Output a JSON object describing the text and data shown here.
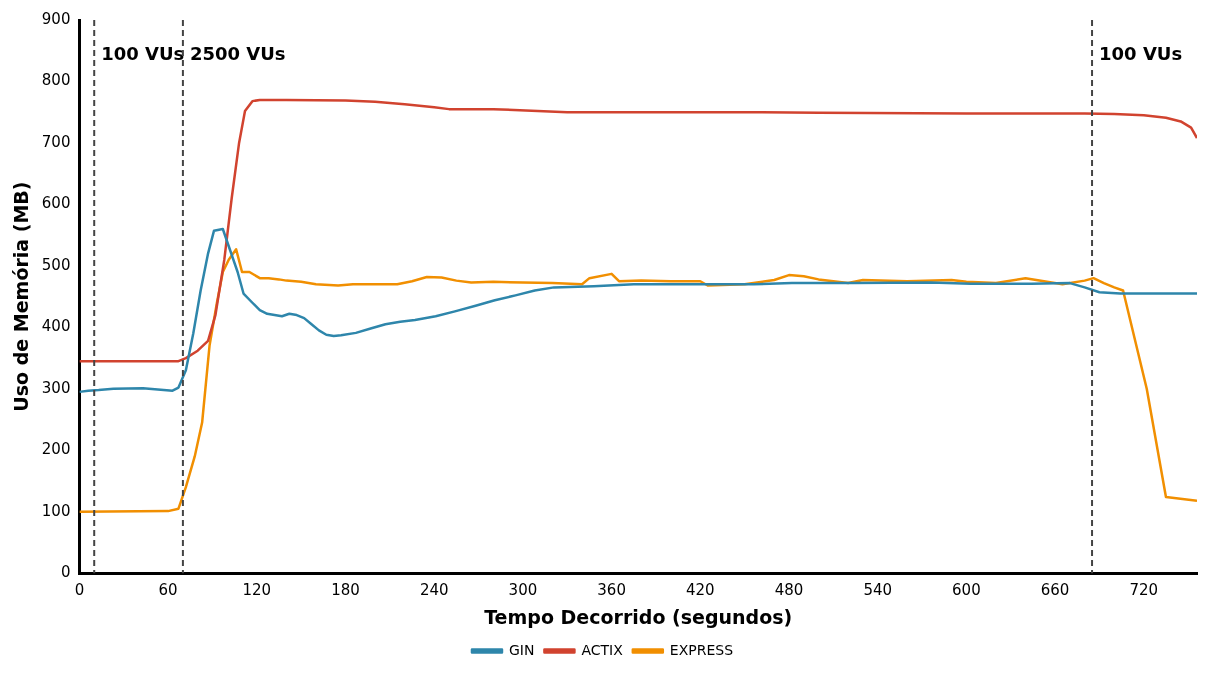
{
  "chart_data": {
    "type": "line",
    "xlabel": "Tempo Decorrido (segundos)",
    "ylabel": "Uso de Memória (MB)",
    "xlim": [
      0,
      756
    ],
    "xticks": [
      0,
      60,
      120,
      180,
      240,
      300,
      360,
      420,
      480,
      540,
      600,
      660,
      720
    ],
    "ylim": [
      0,
      900
    ],
    "yticks": [
      0,
      100,
      200,
      300,
      400,
      500,
      600,
      700,
      800,
      900
    ],
    "grid": false,
    "legend": "bottom",
    "marker": "none",
    "line_style": "solid",
    "ref_lines": [
      {
        "axis": "x",
        "value": 10,
        "label": "100 VUs",
        "color": "#444444",
        "line_style": "dashed"
      },
      {
        "axis": "x",
        "value": 70,
        "label": "2500 VUs",
        "color": "#444444",
        "line_style": "dashed"
      },
      {
        "axis": "x",
        "value": 685,
        "label": "100 VUs",
        "color": "#444444",
        "line_style": "dashed"
      }
    ],
    "series": [
      {
        "name": "GIN",
        "color": "#2e86ab",
        "x": [
          0,
          6,
          13,
          23,
          43,
          53,
          63,
          67,
          72,
          77,
          82,
          87,
          91,
          97,
          102,
          107,
          111,
          117,
          122,
          127,
          137,
          142,
          147,
          152,
          157,
          162,
          167,
          172,
          177,
          187,
          197,
          207,
          217,
          227,
          241,
          254,
          268,
          281,
          295,
          308,
          321,
          348,
          375,
          415,
          456,
          482,
          523,
          576,
          603,
          644,
          670,
          680,
          690,
          704,
          756
        ],
        "values": [
          295,
          297,
          298,
          300,
          301,
          299,
          297,
          302,
          330,
          390,
          460,
          520,
          557,
          560,
          525,
          490,
          455,
          440,
          428,
          422,
          418,
          422,
          420,
          415,
          405,
          395,
          388,
          386,
          387,
          391,
          398,
          405,
          409,
          412,
          418,
          426,
          435,
          444,
          452,
          460,
          465,
          467,
          470,
          470,
          470,
          472,
          472,
          473,
          471,
          471,
          472,
          465,
          457,
          455,
          455
        ]
      },
      {
        "name": "ACTIX",
        "color": "#d1432f",
        "x": [
          0,
          67,
          72,
          80,
          87,
          92,
          98,
          103,
          108,
          112,
          117,
          122,
          140,
          180,
          200,
          220,
          240,
          250,
          280,
          310,
          330,
          420,
          450,
          500,
          600,
          680,
          700,
          720,
          735,
          745,
          752,
          756
        ],
        "values": [
          345,
          345,
          350,
          362,
          378,
          420,
          510,
          610,
          700,
          752,
          768,
          770,
          770,
          769,
          767,
          763,
          758,
          755,
          755,
          752,
          750,
          750,
          750,
          749,
          748,
          748,
          747,
          745,
          741,
          735,
          725,
          708
        ]
      },
      {
        "name": "EXPRESS",
        "color": "#f18f01",
        "x": [
          0,
          60,
          67,
          72,
          78,
          83,
          88,
          93,
          97,
          101,
          106,
          110,
          115,
          122,
          128,
          135,
          140,
          150,
          160,
          175,
          185,
          200,
          215,
          225,
          235,
          245,
          255,
          265,
          280,
          300,
          320,
          340,
          345,
          360,
          365,
          380,
          400,
          420,
          425,
          450,
          470,
          480,
          490,
          500,
          520,
          530,
          560,
          590,
          600,
          620,
          640,
          665,
          680,
          686,
          693,
          700,
          706,
          722,
          735,
          756
        ],
        "values": [
          100,
          101,
          105,
          140,
          190,
          245,
          370,
          440,
          490,
          510,
          527,
          490,
          490,
          480,
          480,
          478,
          476,
          474,
          470,
          468,
          470,
          470,
          470,
          475,
          482,
          481,
          476,
          473,
          474,
          473,
          472,
          470,
          480,
          487,
          475,
          476,
          475,
          475,
          468,
          470,
          477,
          485,
          483,
          478,
          472,
          477,
          475,
          477,
          474,
          472,
          480,
          470,
          476,
          480,
          472,
          465,
          460,
          300,
          124,
          118
        ]
      }
    ]
  }
}
